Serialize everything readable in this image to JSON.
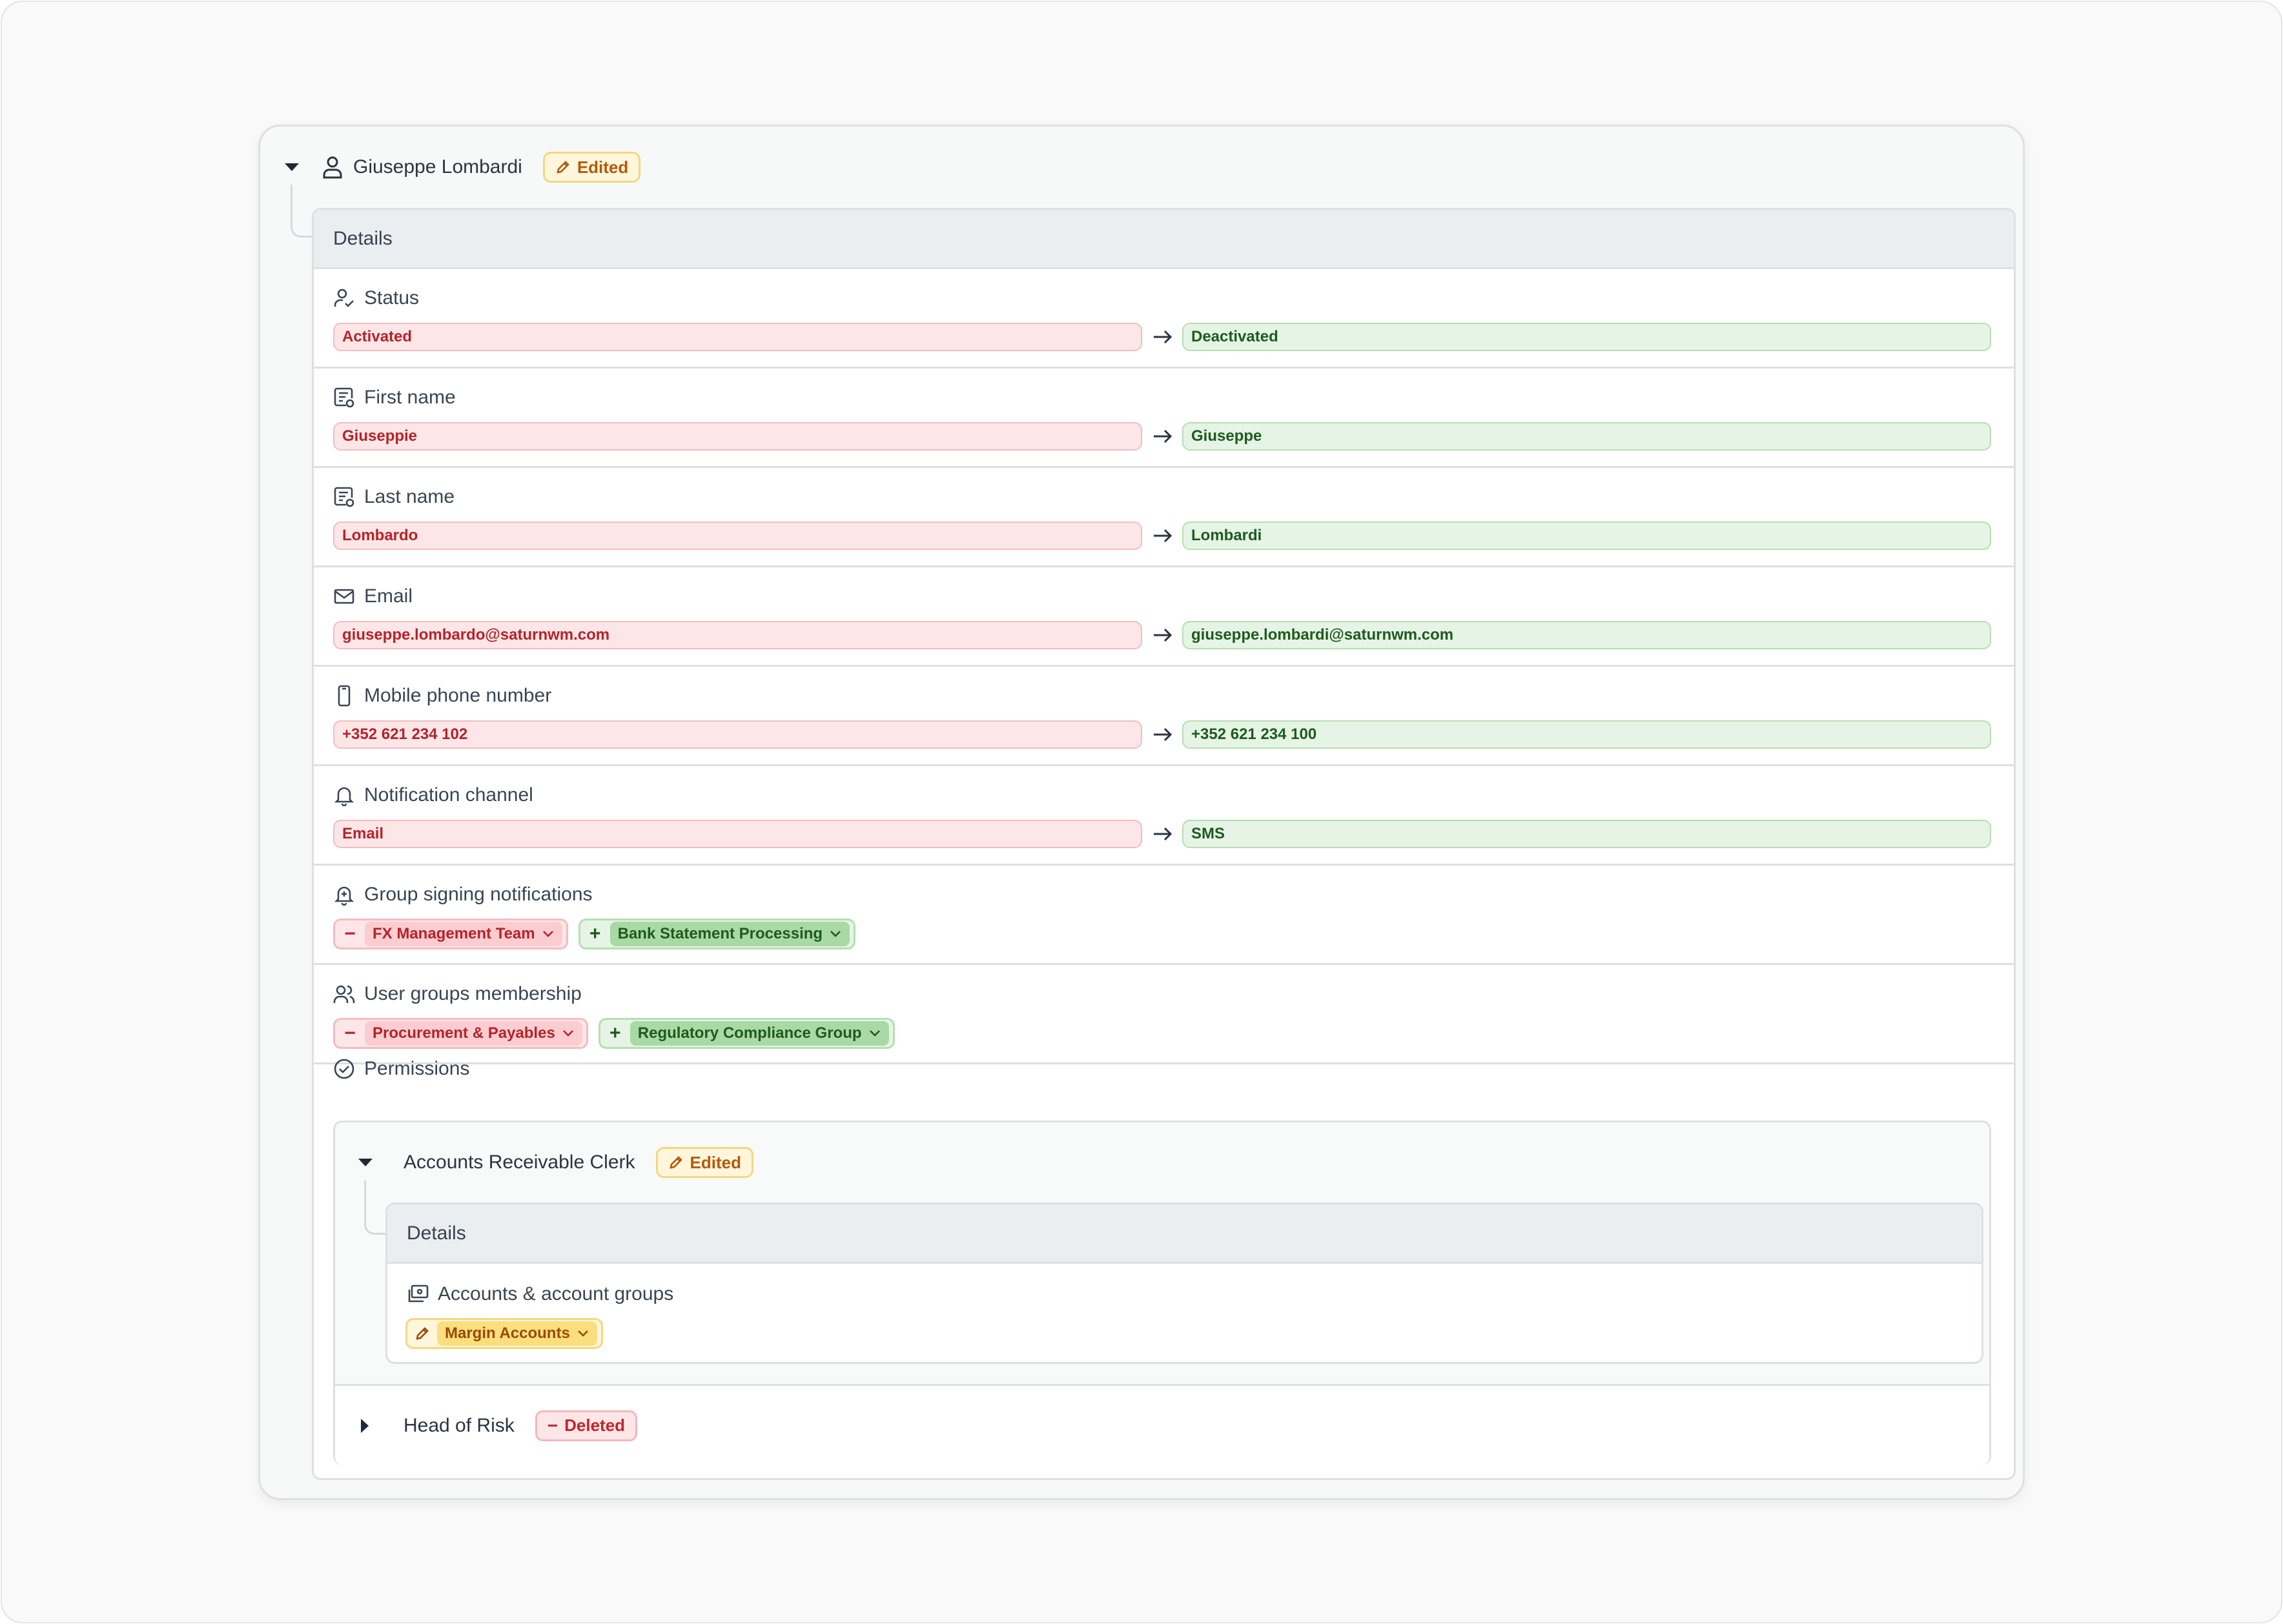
{
  "user": {
    "name": "Giuseppe Lombardi",
    "badge": "Edited",
    "details_title": "Details"
  },
  "fields": [
    {
      "label": "Status",
      "icon": "user-check-icon",
      "old": "Activated",
      "new": "Deactivated"
    },
    {
      "label": "First name",
      "icon": "id-card-icon",
      "old": "Giuseppie",
      "new": "Giuseppe"
    },
    {
      "label": "Last name",
      "icon": "id-card-icon",
      "old": "Lombardo",
      "new": "Lombardi"
    },
    {
      "label": "Email",
      "icon": "mail-icon",
      "old": "giuseppe.lombardo@saturnwm.com",
      "new": "giuseppe.lombardi@saturnwm.com"
    },
    {
      "label": "Mobile phone number",
      "icon": "phone-icon",
      "old": "+352 621 234 102",
      "new": "+352 621 234 100"
    },
    {
      "label": "Notification channel",
      "icon": "bell-icon",
      "old": "Email",
      "new": "SMS"
    }
  ],
  "group_signing": {
    "label": "Group signing notifications",
    "removed": "FX Management Team",
    "added": "Bank Statement Processing"
  },
  "user_groups": {
    "label": "User groups membership",
    "removed": "Procurement & Payables",
    "added": "Regulatory Compliance Group"
  },
  "permissions": {
    "label": "Permissions",
    "roles": [
      {
        "name": "Accounts Receivable Clerk",
        "badge": "Edited",
        "details_title": "Details",
        "field_label": "Accounts & account groups",
        "edited_chip": "Margin Accounts"
      },
      {
        "name": "Head of Risk",
        "badge": "Deleted"
      }
    ]
  },
  "colors": {
    "removed_bg": "#fde6e7",
    "added_bg": "#e5f4e4",
    "edited_bg": "#fff6dc"
  }
}
